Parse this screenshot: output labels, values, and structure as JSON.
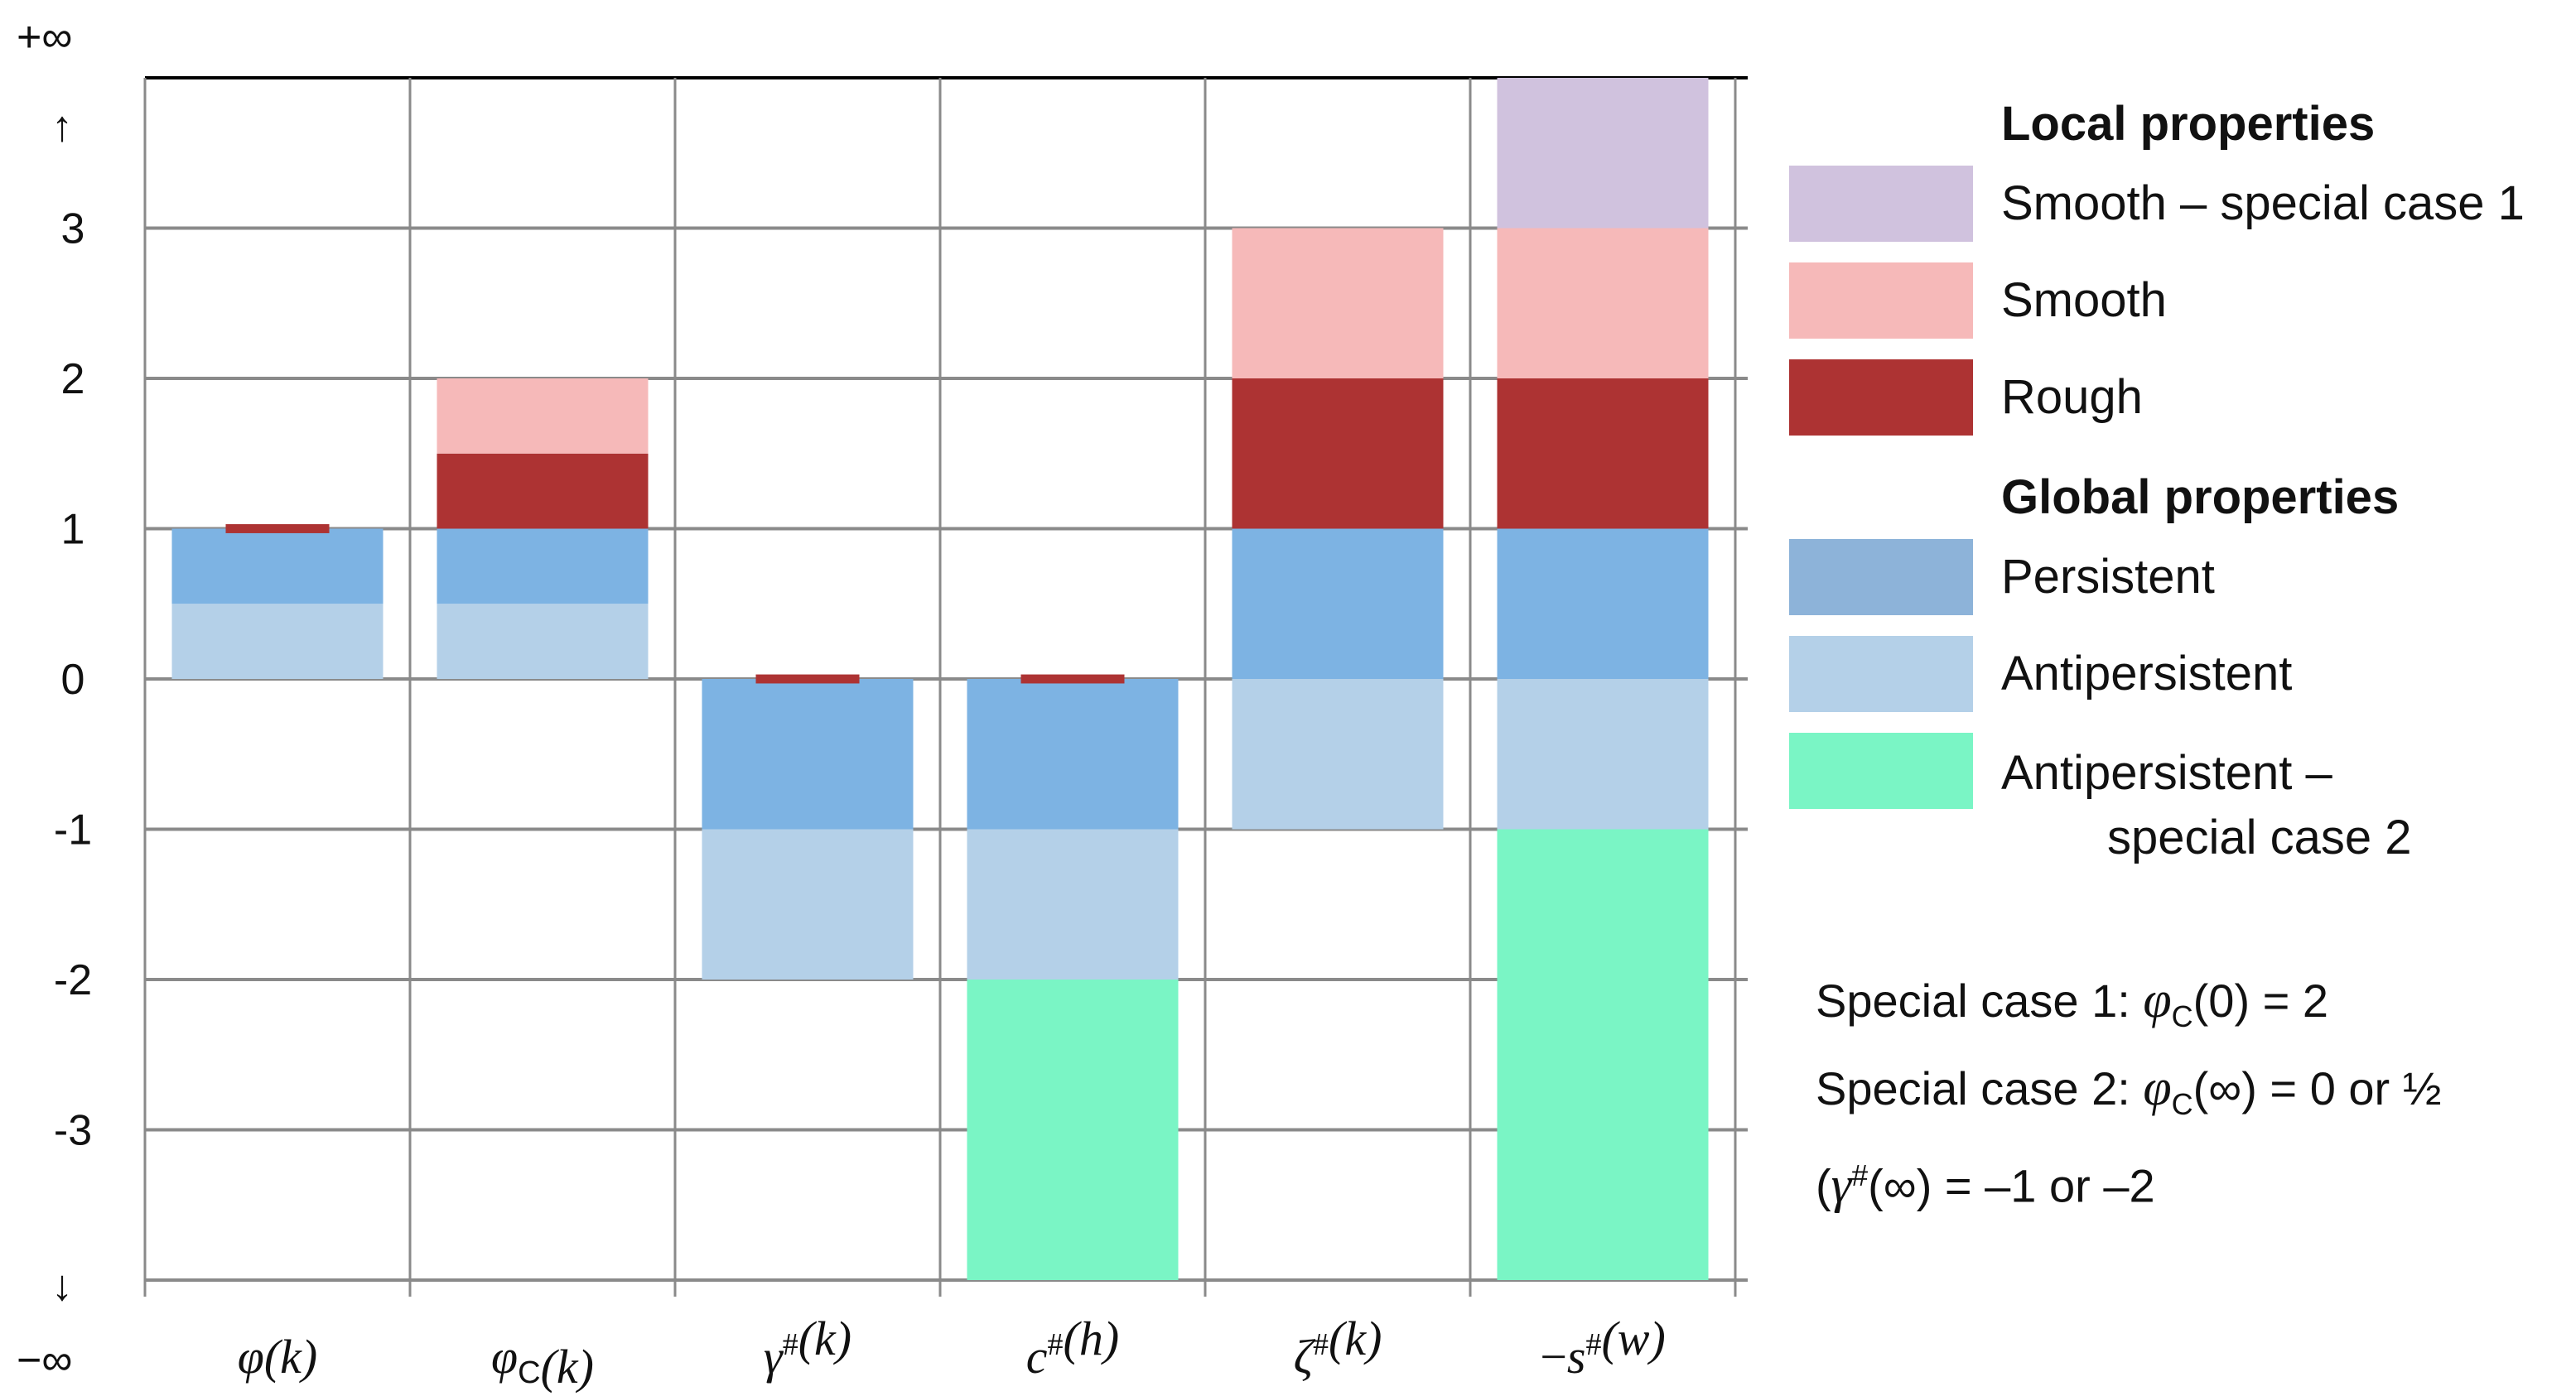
{
  "chart_data": {
    "type": "bar",
    "title": "",
    "xlabel": "",
    "ylabel": "",
    "ylim": [
      -4,
      4
    ],
    "y_ticks": [
      {
        "value": 4,
        "label": "+∞"
      },
      {
        "value": 3,
        "label": "3"
      },
      {
        "value": 2,
        "label": "2"
      },
      {
        "value": 1,
        "label": "1"
      },
      {
        "value": 0,
        "label": "0"
      },
      {
        "value": -1,
        "label": "-1"
      },
      {
        "value": -2,
        "label": "-2"
      },
      {
        "value": -3,
        "label": "-3"
      },
      {
        "value": -4,
        "label": "−∞"
      }
    ],
    "arrow_up": "↑",
    "arrow_down": "↓",
    "categories": [
      {
        "label": "φ(k)",
        "base": "φ",
        "sub": "",
        "sup": "",
        "arg": "(k)",
        "prefix": ""
      },
      {
        "label": "φC(k)",
        "base": "φ",
        "sub": "C",
        "sup": "",
        "arg": "(k)",
        "prefix": ""
      },
      {
        "label": "γ#(k)",
        "base": "γ",
        "sub": "",
        "sup": "#",
        "arg": "(k)",
        "prefix": ""
      },
      {
        "label": "c#(h)",
        "base": "c",
        "sub": "",
        "sup": "#",
        "arg": "(h)",
        "prefix": ""
      },
      {
        "label": "ζ#(k)",
        "base": "ζ",
        "sub": "",
        "sup": "#",
        "arg": "(k)",
        "prefix": ""
      },
      {
        "label": "−s#(w)",
        "base": "s",
        "sub": "",
        "sup": "#",
        "arg": "(w)",
        "prefix": "−"
      }
    ],
    "series": [
      {
        "name": "Antipersistent – special case 2",
        "color": "#7af5c5",
        "segments": [
          null,
          null,
          null,
          [
            -4,
            -2
          ],
          null,
          [
            -4,
            -1
          ]
        ]
      },
      {
        "name": "Antipersistent",
        "color": "#b4d0e8",
        "segments": [
          [
            0,
            0.5
          ],
          [
            0,
            0.5
          ],
          [
            -2,
            -1
          ],
          [
            -2,
            -1
          ],
          [
            -1,
            0
          ],
          [
            -1,
            0
          ]
        ]
      },
      {
        "name": "Persistent",
        "color": "#7db3e3",
        "segments": [
          [
            0.5,
            1
          ],
          [
            0.5,
            1
          ],
          [
            -1,
            0
          ],
          [
            -1,
            0
          ],
          [
            0,
            1
          ],
          [
            0,
            1
          ]
        ]
      },
      {
        "name": "Rough",
        "color": "#ad3333",
        "segments": [
          [
            0.97,
            1.03
          ],
          [
            1,
            1.5
          ],
          [
            -0.03,
            0.03
          ],
          [
            -0.03,
            0.03
          ],
          [
            1,
            2
          ],
          [
            1,
            2
          ]
        ]
      },
      {
        "name": "Smooth",
        "color": "#f6b9b9",
        "segments": [
          null,
          [
            1.5,
            2
          ],
          null,
          null,
          [
            2,
            3
          ],
          [
            2,
            3
          ]
        ]
      },
      {
        "name": "Smooth – special case 1",
        "color": "#d0c2de",
        "segments": [
          null,
          null,
          null,
          null,
          null,
          [
            3,
            4
          ]
        ]
      }
    ],
    "legend": {
      "local_heading": "Local properties",
      "global_heading": "Global properties",
      "local_items": [
        {
          "label": "Smooth – special case 1",
          "color": "#d0c2de"
        },
        {
          "label": "Smooth",
          "color": "#f6b9b9"
        },
        {
          "label": "Rough",
          "color": "#ad3333"
        }
      ],
      "global_items": [
        {
          "label": "Persistent",
          "color": "#8db3d9"
        },
        {
          "label": "Antipersistent",
          "color": "#b4d0e8"
        }
      ],
      "special_item": {
        "line1": "Antipersistent –",
        "line2": "special case 2",
        "color": "#7af5c5"
      }
    },
    "notes": {
      "case1_prefix": "Special case 1: ",
      "case1_sym": "φ",
      "case1_sub": "C",
      "case1_rest": "(0) = 2",
      "case2_prefix": "Special case 2: ",
      "case2_sym": "φ",
      "case2_sub": "C",
      "case2_rest": "(∞) = 0 or ½",
      "case3_open": "(",
      "case3_sym": "γ",
      "case3_sup": "#",
      "case3_rest": "(∞) = –1 or –2"
    }
  }
}
